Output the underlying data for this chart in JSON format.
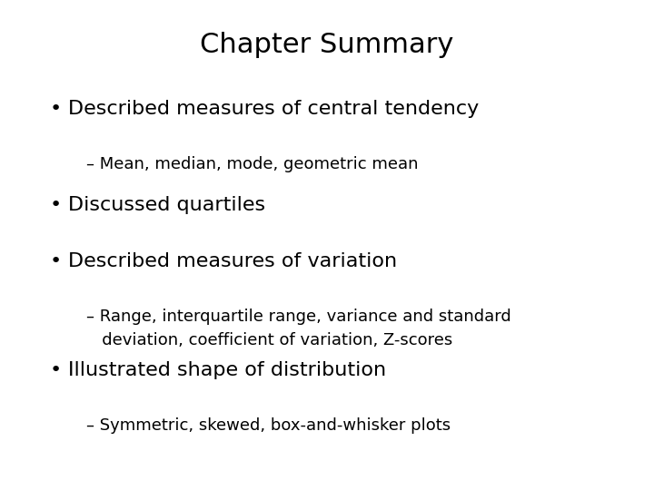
{
  "title": "Chapter Summary",
  "background_color": "#ffffff",
  "title_fontsize": 22,
  "title_color": "#000000",
  "items": [
    {
      "type": "bullet",
      "text": "Described measures of central tendency",
      "fontsize": 16,
      "bullet": "•"
    },
    {
      "type": "sub",
      "text": "– Mean, median, mode, geometric mean",
      "fontsize": 13
    },
    {
      "type": "bullet",
      "text": "Discussed quartiles",
      "fontsize": 16,
      "bullet": "•"
    },
    {
      "type": "bullet",
      "text": "Described measures of variation",
      "fontsize": 16,
      "bullet": "•"
    },
    {
      "type": "sub",
      "text": "– Range, interquartile range, variance and standard\n   deviation, coefficient of variation, Z-scores",
      "fontsize": 13
    },
    {
      "type": "bullet",
      "text": "Illustrated shape of distribution",
      "fontsize": 16,
      "bullet": "•"
    },
    {
      "type": "sub",
      "text": "– Symmetric, skewed, box-and-whisker plots",
      "fontsize": 13
    }
  ]
}
